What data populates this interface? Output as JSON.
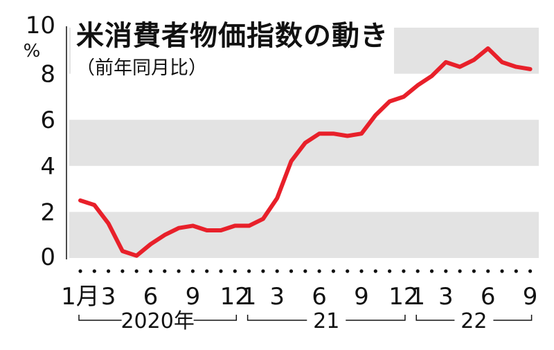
{
  "chart_data": {
    "type": "line",
    "title": "米消費者物価指数の動き",
    "subtitle": "（前年同月比）",
    "ylabel": "%",
    "ylim": [
      0,
      10
    ],
    "yticks": [
      "0",
      "2",
      "4",
      "6",
      "8",
      "10"
    ],
    "xtick_labels": [
      {
        "label": "1月",
        "index": 0
      },
      {
        "label": "3",
        "index": 2
      },
      {
        "label": "6",
        "index": 5
      },
      {
        "label": "9",
        "index": 8
      },
      {
        "label": "12",
        "index": 11
      },
      {
        "label": "1",
        "index": 12
      },
      {
        "label": "3",
        "index": 14
      },
      {
        "label": "6",
        "index": 17
      },
      {
        "label": "9",
        "index": 20
      },
      {
        "label": "12",
        "index": 23
      },
      {
        "label": "1",
        "index": 24
      },
      {
        "label": "3",
        "index": 26
      },
      {
        "label": "6",
        "index": 29
      },
      {
        "label": "9",
        "index": 32
      }
    ],
    "year_groups": [
      {
        "label": "2020年",
        "start": 0,
        "end": 11
      },
      {
        "label": "21",
        "start": 12,
        "end": 23
      },
      {
        "label": "22",
        "start": 24,
        "end": 32
      }
    ],
    "x": [
      "2020-01",
      "2020-02",
      "2020-03",
      "2020-04",
      "2020-05",
      "2020-06",
      "2020-07",
      "2020-08",
      "2020-09",
      "2020-10",
      "2020-11",
      "2020-12",
      "2021-01",
      "2021-02",
      "2021-03",
      "2021-04",
      "2021-05",
      "2021-06",
      "2021-07",
      "2021-08",
      "2021-09",
      "2021-10",
      "2021-11",
      "2021-12",
      "2022-01",
      "2022-02",
      "2022-03",
      "2022-04",
      "2022-05",
      "2022-06",
      "2022-07",
      "2022-08",
      "2022-09"
    ],
    "series": [
      {
        "values": [
          2.5,
          2.3,
          1.5,
          0.3,
          0.1,
          0.6,
          1.0,
          1.3,
          1.4,
          1.2,
          1.2,
          1.4,
          1.4,
          1.7,
          2.6,
          4.2,
          5.0,
          5.4,
          5.4,
          5.3,
          5.4,
          6.2,
          6.8,
          7.0,
          7.5,
          7.9,
          8.5,
          8.3,
          8.6,
          9.1,
          8.5,
          8.3,
          8.2
        ]
      }
    ],
    "grid": "alternating horizontal bands",
    "colors": {
      "line": "#e8202a",
      "band": "#e3e3e3",
      "text": "#111111"
    }
  }
}
